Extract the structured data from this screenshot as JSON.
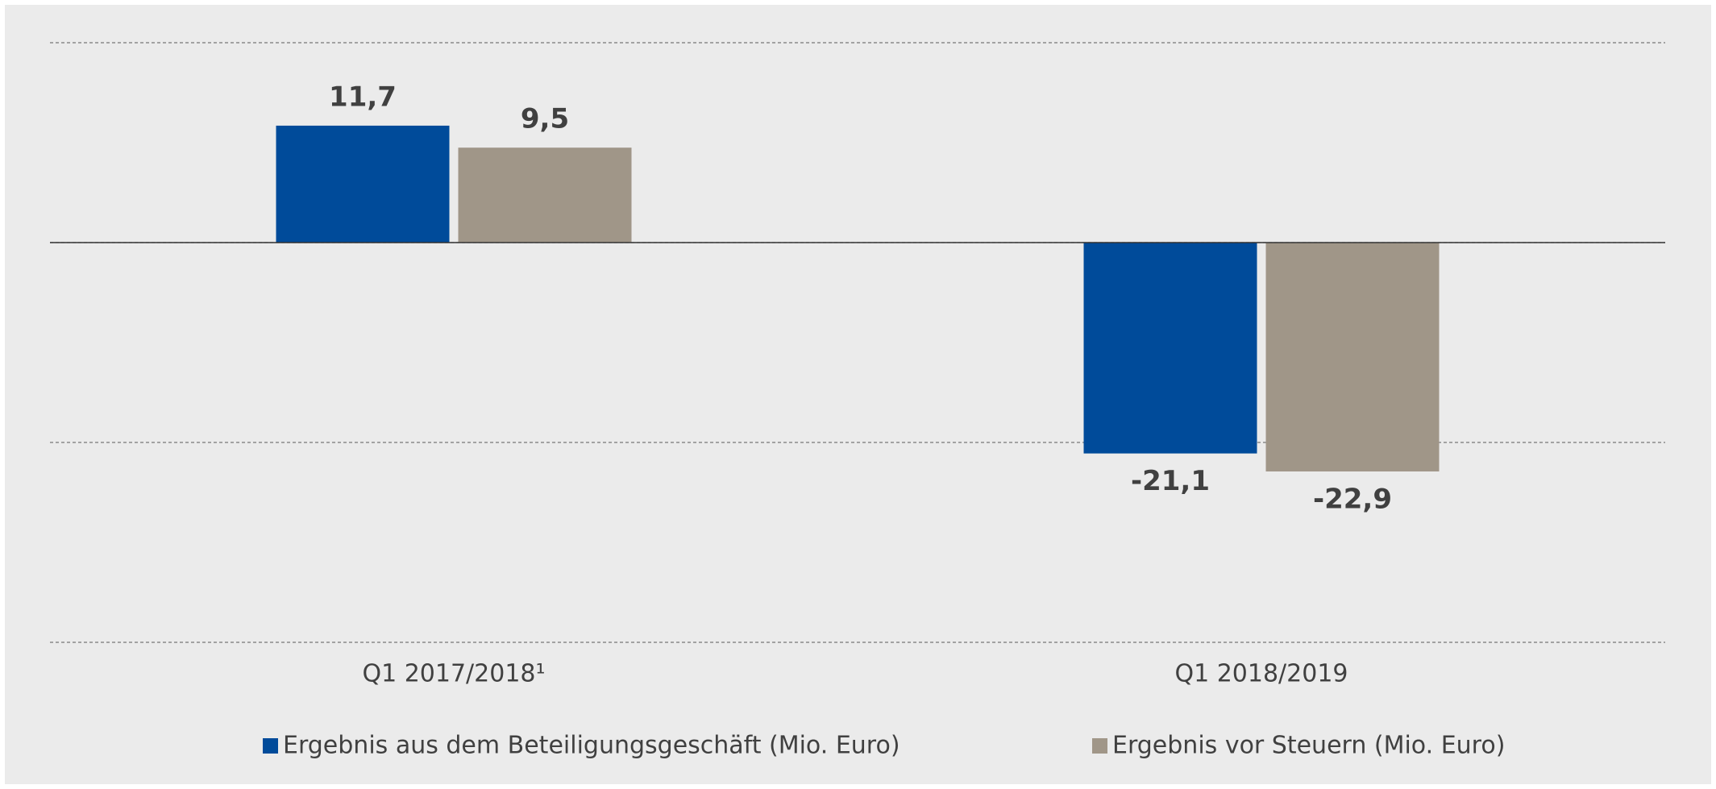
{
  "chart_data": {
    "type": "bar",
    "categories": [
      "Q1 2017/2018¹",
      "Q1 2018/2019"
    ],
    "series": [
      {
        "name": "Ergebnis aus dem Beteiligungsgeschäft (Mio. Euro)",
        "color": "#004b9a",
        "values": [
          11.7,
          -21.1
        ],
        "value_labels": [
          "11,7",
          "-21,1"
        ]
      },
      {
        "name": "Ergebnis vor Steuern (Mio. Euro)",
        "color": "#a09688",
        "values": [
          9.5,
          -22.9
        ],
        "value_labels": [
          "9,5",
          "-22,9"
        ]
      }
    ],
    "ylim": [
      -40,
      20
    ],
    "yticks": [
      -40,
      -20,
      0,
      20
    ],
    "grid": true,
    "legend": "bottom"
  }
}
